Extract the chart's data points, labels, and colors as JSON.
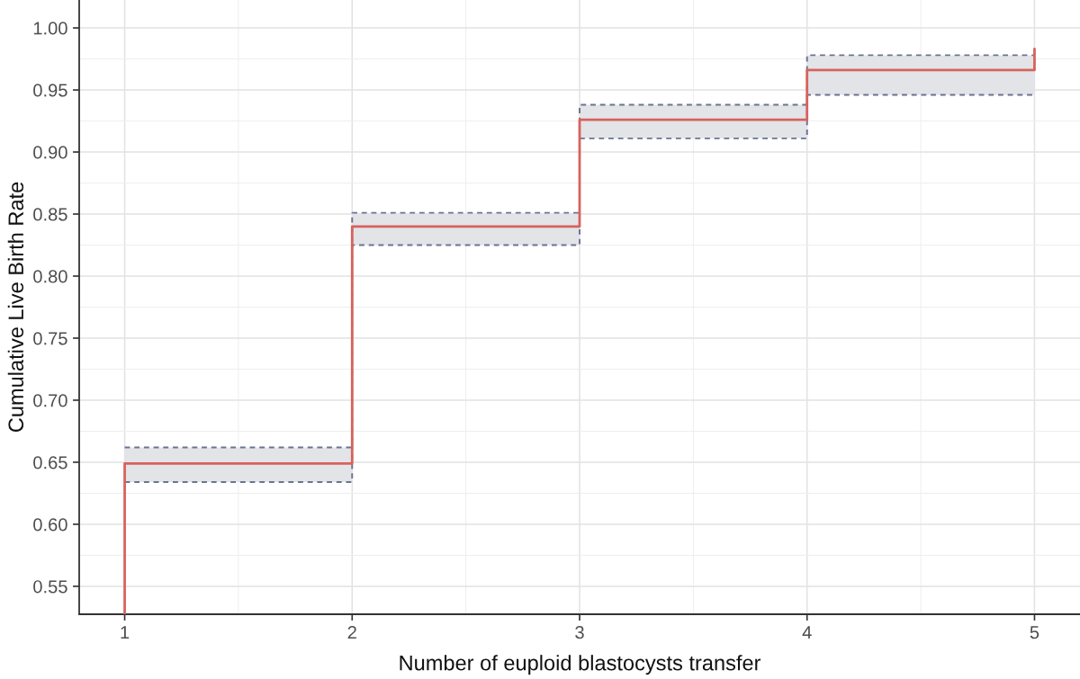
{
  "chart_data": {
    "type": "step",
    "xlabel": "Number of euploid blastocysts transfer",
    "ylabel": "Cumulative Live Birth Rate",
    "x": [
      1,
      1,
      2,
      3,
      4,
      5
    ],
    "series": [
      {
        "color": "#6b7391",
        "line_style": "dashed",
        "values": [
          null,
          0.662,
          0.851,
          0.938,
          0.978,
          0.978
        ]
      },
      {
        "color": "#6b7391",
        "line_style": "dashed",
        "values": [
          null,
          0.634,
          0.825,
          0.911,
          0.946,
          0.946
        ]
      },
      {
        "color": "#d8625c",
        "values": [
          0.5275,
          0.649,
          0.84,
          0.926,
          0.966,
          0.983
        ],
        "lower": [
          null,
          0.634,
          0.825,
          0.911,
          0.946,
          0.946
        ],
        "upper": [
          null,
          0.662,
          0.851,
          0.938,
          0.978,
          0.978
        ]
      }
    ],
    "xlim": [
      0.8,
      5.2
    ],
    "xticks": [
      1,
      2,
      3,
      4,
      5
    ],
    "ylim": [
      0.5275,
      1.0225
    ],
    "yticks": [
      0.55,
      {
        "value": 0.6,
        "label": "0.60"
      },
      0.65,
      {
        "value": 0.7,
        "label": "0.70"
      },
      0.75,
      {
        "value": 0.8,
        "label": "0.80"
      },
      0.85,
      {
        "value": 0.9,
        "label": "0.90"
      },
      0.95,
      {
        "value": 1.0,
        "label": "1.00"
      }
    ],
    "grid": true
  }
}
